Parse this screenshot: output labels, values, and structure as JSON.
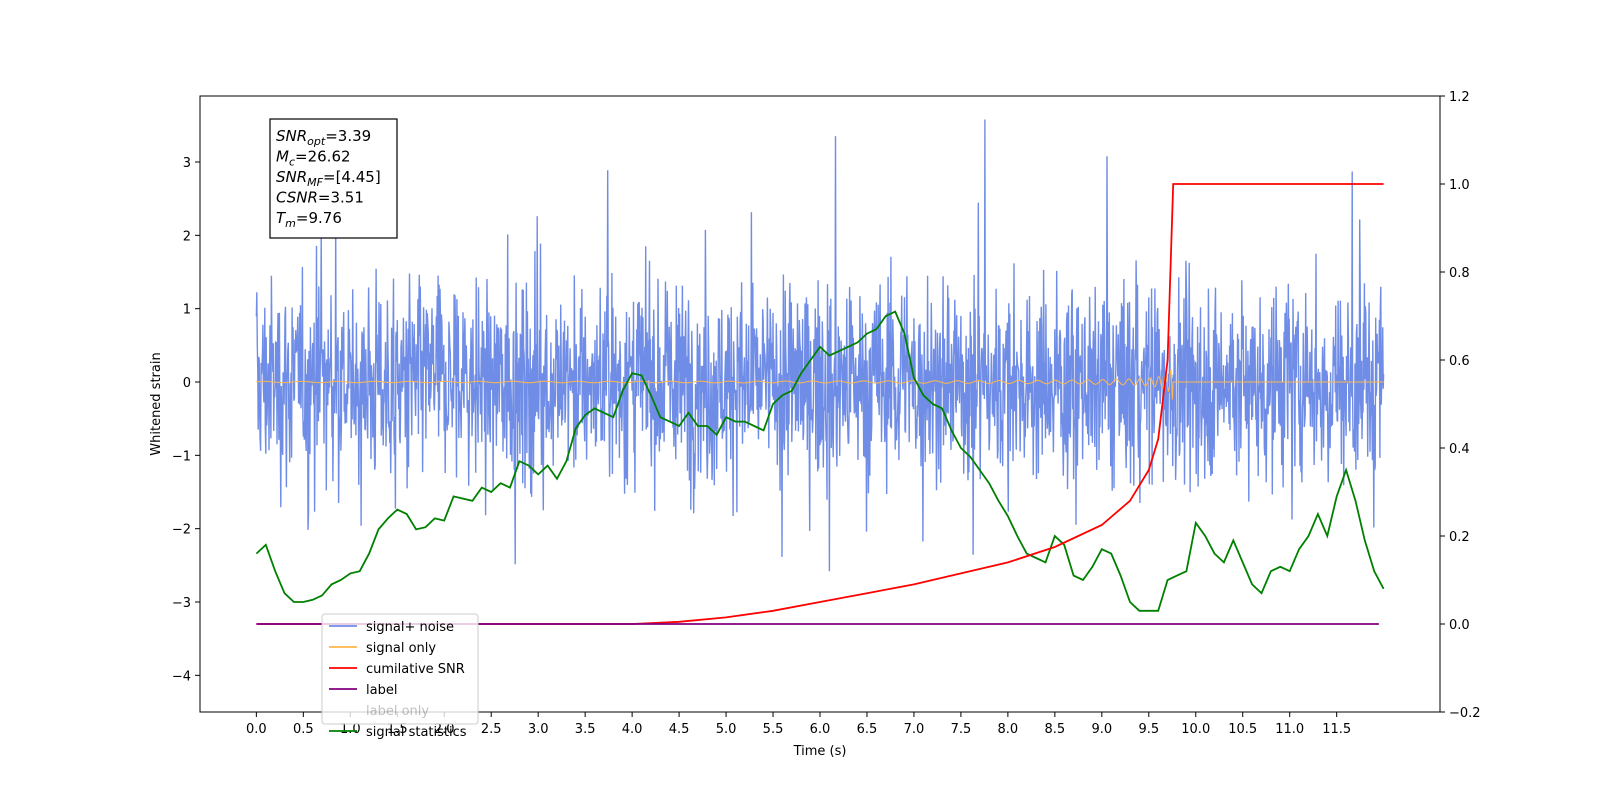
{
  "chart_data": {
    "type": "line",
    "title": "",
    "xlabel": "Time (s)",
    "ylabel": "Whitened strain",
    "ylabel_right": "",
    "xlim": [
      -0.6,
      12.6
    ],
    "ylim": [
      -4.5,
      3.9
    ],
    "ylim_right": [
      -0.2,
      1.2
    ],
    "x_ticks": [
      "0.0",
      "0.5",
      "1.0",
      "1.5",
      "2.0",
      "2.5",
      "3.0",
      "3.5",
      "4.0",
      "4.5",
      "5.0",
      "5.5",
      "6.0",
      "6.5",
      "7.0",
      "7.5",
      "8.0",
      "8.5",
      "9.0",
      "9.5",
      "10.0",
      "10.5",
      "11.0",
      "11.5"
    ],
    "y_ticks": [
      "3",
      "2",
      "1",
      "0",
      "−1",
      "−2",
      "−3",
      "−4"
    ],
    "y_ticks_right": [
      "1.2",
      "1.0",
      "0.8",
      "0.6",
      "0.4",
      "0.2",
      "0.0",
      "−0.2"
    ],
    "grid": false,
    "legend_position": "lower-left",
    "annotation": {
      "lines": [
        {
          "sym": "SNR",
          "sub": "opt",
          "val": "=3.39"
        },
        {
          "sym": "M",
          "sub": "c",
          "val": "=26.62"
        },
        {
          "sym": "SNR",
          "sub": "MF",
          "val": "=[4.45]"
        },
        {
          "sym": "CSNR",
          "sub": "",
          "val": "=3.51"
        },
        {
          "sym": "T",
          "sub": "m",
          "val": "=9.76"
        }
      ]
    },
    "series": [
      {
        "name": "signal+ noise",
        "color": "#6f8de6",
        "axis": "left",
        "description_values": "noise spanning roughly -4.1 to 3.6 across 0 to 12 s"
      },
      {
        "name": "signal only",
        "color": "#ffb74d",
        "axis": "left",
        "chirp_end_time": 9.76,
        "peak_amplitude": 0.75
      },
      {
        "name": "cumilative SNR",
        "color": "#ff0000",
        "axis": "right",
        "x": [
          0,
          4.0,
          4.5,
          5.0,
          5.5,
          6.0,
          6.5,
          7.0,
          7.5,
          8.0,
          8.5,
          9.0,
          9.3,
          9.5,
          9.6,
          9.7,
          9.76,
          12.0
        ],
        "y": [
          0.0,
          0.0,
          0.005,
          0.015,
          0.03,
          0.05,
          0.07,
          0.09,
          0.115,
          0.14,
          0.175,
          0.225,
          0.28,
          0.35,
          0.42,
          0.6,
          1.0,
          1.0
        ]
      },
      {
        "name": "label",
        "color": "#800080",
        "axis": "right",
        "x": [
          0,
          11.95
        ],
        "y": [
          0.0,
          0.0
        ]
      },
      {
        "name": "label only",
        "color": "#800080",
        "axis": "right",
        "hidden": true
      },
      {
        "name": "signal statistics",
        "color": "#008000",
        "axis": "right",
        "x": [
          0,
          0.1,
          0.2,
          0.3,
          0.4,
          0.5,
          0.6,
          0.7,
          0.8,
          0.9,
          1.0,
          1.1,
          1.2,
          1.3,
          1.4,
          1.5,
          1.6,
          1.7,
          1.8,
          1.9,
          2.0,
          2.1,
          2.2,
          2.3,
          2.4,
          2.5,
          2.6,
          2.7,
          2.8,
          2.9,
          3.0,
          3.1,
          3.2,
          3.3,
          3.4,
          3.5,
          3.6,
          3.7,
          3.8,
          3.9,
          4.0,
          4.1,
          4.2,
          4.3,
          4.4,
          4.5,
          4.6,
          4.7,
          4.8,
          4.9,
          5.0,
          5.1,
          5.2,
          5.3,
          5.4,
          5.5,
          5.6,
          5.7,
          5.8,
          5.9,
          6.0,
          6.1,
          6.2,
          6.3,
          6.4,
          6.5,
          6.6,
          6.7,
          6.8,
          6.9,
          7.0,
          7.1,
          7.2,
          7.3,
          7.4,
          7.5,
          7.6,
          7.7,
          7.8,
          7.9,
          8.0,
          8.1,
          8.2,
          8.3,
          8.4,
          8.5,
          8.6,
          8.7,
          8.8,
          8.9,
          9.0,
          9.1,
          9.2,
          9.3,
          9.4,
          9.5,
          9.6,
          9.7,
          9.8,
          9.9,
          10.0,
          10.1,
          10.2,
          10.3,
          10.4,
          10.5,
          10.6,
          10.7,
          10.8,
          10.9,
          11.0,
          11.1,
          11.2,
          11.3,
          11.4,
          11.5,
          11.6,
          11.7,
          11.8,
          11.9,
          12.0
        ],
        "y": [
          0.16,
          0.18,
          0.12,
          0.07,
          0.05,
          0.05,
          0.055,
          0.065,
          0.09,
          0.1,
          0.115,
          0.12,
          0.16,
          0.215,
          0.24,
          0.26,
          0.25,
          0.215,
          0.22,
          0.24,
          0.235,
          0.29,
          0.285,
          0.28,
          0.31,
          0.3,
          0.32,
          0.31,
          0.37,
          0.36,
          0.34,
          0.36,
          0.33,
          0.37,
          0.445,
          0.475,
          0.49,
          0.48,
          0.47,
          0.53,
          0.57,
          0.565,
          0.52,
          0.47,
          0.46,
          0.45,
          0.48,
          0.45,
          0.45,
          0.43,
          0.47,
          0.46,
          0.46,
          0.45,
          0.44,
          0.5,
          0.52,
          0.53,
          0.57,
          0.6,
          0.63,
          0.61,
          0.62,
          0.63,
          0.64,
          0.66,
          0.67,
          0.7,
          0.71,
          0.66,
          0.56,
          0.52,
          0.5,
          0.49,
          0.44,
          0.4,
          0.38,
          0.35,
          0.32,
          0.28,
          0.245,
          0.2,
          0.16,
          0.15,
          0.14,
          0.2,
          0.18,
          0.11,
          0.1,
          0.13,
          0.17,
          0.16,
          0.11,
          0.05,
          0.03,
          0.03,
          0.03,
          0.1,
          0.11,
          0.12,
          0.23,
          0.2,
          0.16,
          0.14,
          0.19,
          0.14,
          0.09,
          0.07,
          0.12,
          0.13,
          0.12,
          0.17,
          0.2,
          0.25,
          0.2,
          0.29,
          0.35,
          0.28,
          0.19,
          0.12,
          0.08
        ]
      }
    ]
  }
}
